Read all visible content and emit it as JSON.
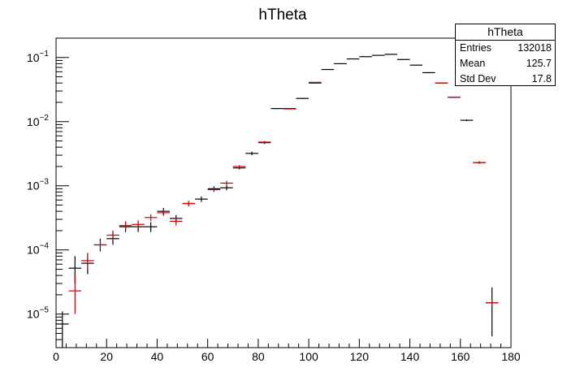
{
  "chart_data": {
    "type": "scatter",
    "title": "hTheta",
    "xlabel": "",
    "ylabel": "",
    "xlim": [
      0,
      180
    ],
    "ylim": [
      3e-06,
      0.2
    ],
    "yscale": "log",
    "grid": false,
    "x_ticks": [
      0,
      20,
      40,
      60,
      80,
      100,
      120,
      140,
      160,
      180
    ],
    "x_tick_labels": [
      "0",
      "20",
      "40",
      "60",
      "80",
      "100",
      "120",
      "140",
      "160",
      "180"
    ],
    "y_ticks": [
      1e-05,
      0.0001,
      0.001,
      0.01,
      0.1
    ],
    "y_tick_bases": [
      "10",
      "10",
      "10",
      "10",
      "10"
    ],
    "y_tick_exponents": [
      "−5",
      "−4",
      "−3",
      "−2",
      "−1"
    ],
    "bin_width": 5,
    "series": [
      {
        "color": "#000000",
        "points": [
          {
            "x": 2.5,
            "y": 7e-06,
            "lo": 3e-06,
            "hi": 1.1e-05
          },
          {
            "x": 7.5,
            "y": 5.2e-05,
            "lo": 3e-05,
            "hi": 8e-05
          },
          {
            "x": 12.5,
            "y": 6.2e-05,
            "lo": 4.2e-05,
            "hi": 8.5e-05
          },
          {
            "x": 17.5,
            "y": 0.00012,
            "lo": 9.5e-05,
            "hi": 0.00015
          },
          {
            "x": 22.5,
            "y": 0.00015,
            "lo": 0.00012,
            "hi": 0.00019
          },
          {
            "x": 27.5,
            "y": 0.00023,
            "lo": 0.00019,
            "hi": 0.00027
          },
          {
            "x": 32.5,
            "y": 0.00023,
            "lo": 0.00019,
            "hi": 0.00027
          },
          {
            "x": 37.5,
            "y": 0.00023,
            "lo": 0.00019,
            "hi": 0.00027
          },
          {
            "x": 42.5,
            "y": 0.0004,
            "lo": 0.00035,
            "hi": 0.00045
          },
          {
            "x": 47.5,
            "y": 0.00031,
            "lo": 0.00027,
            "hi": 0.00035
          },
          {
            "x": 52.5,
            "y": 0.00053,
            "lo": 0.00048,
            "hi": 0.00058
          },
          {
            "x": 57.5,
            "y": 0.00062,
            "lo": 0.00056,
            "hi": 0.00068
          },
          {
            "x": 62.5,
            "y": 0.0009,
            "lo": 0.00082,
            "hi": 0.00098
          },
          {
            "x": 67.5,
            "y": 0.00093,
            "lo": 0.00085,
            "hi": 0.00101
          },
          {
            "x": 72.5,
            "y": 0.0019,
            "lo": 0.0018,
            "hi": 0.002
          },
          {
            "x": 77.5,
            "y": 0.0032,
            "lo": 0.003,
            "hi": 0.0034
          },
          {
            "x": 82.5,
            "y": 0.0047,
            "lo": 0.0045,
            "hi": 0.0049
          },
          {
            "x": 87.5,
            "y": 0.016,
            "lo": 0.0157,
            "hi": 0.0163
          },
          {
            "x": 92.5,
            "y": 0.016,
            "lo": 0.0157,
            "hi": 0.0163
          },
          {
            "x": 97.5,
            "y": 0.023,
            "lo": 0.0226,
            "hi": 0.0234
          },
          {
            "x": 102.5,
            "y": 0.04,
            "lo": 0.0395,
            "hi": 0.0405
          },
          {
            "x": 107.5,
            "y": 0.065,
            "lo": 0.064,
            "hi": 0.066
          },
          {
            "x": 112.5,
            "y": 0.08,
            "lo": 0.079,
            "hi": 0.081
          },
          {
            "x": 117.5,
            "y": 0.095,
            "lo": 0.094,
            "hi": 0.096
          },
          {
            "x": 122.5,
            "y": 0.103,
            "lo": 0.102,
            "hi": 0.104
          },
          {
            "x": 127.5,
            "y": 0.108,
            "lo": 0.107,
            "hi": 0.109
          },
          {
            "x": 132.5,
            "y": 0.112,
            "lo": 0.111,
            "hi": 0.113
          },
          {
            "x": 137.5,
            "y": 0.093,
            "lo": 0.092,
            "hi": 0.094
          },
          {
            "x": 142.5,
            "y": 0.076,
            "lo": 0.075,
            "hi": 0.077
          },
          {
            "x": 147.5,
            "y": 0.058,
            "lo": 0.057,
            "hi": 0.059
          },
          {
            "x": 152.5,
            "y": 0.04,
            "lo": 0.0395,
            "hi": 0.0405
          },
          {
            "x": 157.5,
            "y": 0.024,
            "lo": 0.0236,
            "hi": 0.0244
          },
          {
            "x": 162.5,
            "y": 0.0105,
            "lo": 0.0102,
            "hi": 0.0108
          },
          {
            "x": 167.5,
            "y": 0.0023,
            "lo": 0.0022,
            "hi": 0.0024
          },
          {
            "x": 172.5,
            "y": 1.5e-05,
            "lo": 4.5e-06,
            "hi": 2.6e-05
          }
        ]
      },
      {
        "color": "#cc0000",
        "points": [
          {
            "x": 7.5,
            "y": 2.3e-05,
            "lo": 1e-05,
            "hi": 4.2e-05
          },
          {
            "x": 12.5,
            "y": 6.8e-05,
            "lo": 5e-05,
            "hi": 9e-05
          },
          {
            "x": 17.5,
            "y": 0.00012,
            "lo": 0.0001,
            "hi": 0.00014
          },
          {
            "x": 22.5,
            "y": 0.00017,
            "lo": 0.00014,
            "hi": 0.0002
          },
          {
            "x": 27.5,
            "y": 0.00024,
            "lo": 0.00021,
            "hi": 0.00028
          },
          {
            "x": 32.5,
            "y": 0.00025,
            "lo": 0.00022,
            "hi": 0.00029
          },
          {
            "x": 37.5,
            "y": 0.00032,
            "lo": 0.00028,
            "hi": 0.00036
          },
          {
            "x": 42.5,
            "y": 0.00038,
            "lo": 0.00034,
            "hi": 0.00042
          },
          {
            "x": 47.5,
            "y": 0.00028,
            "lo": 0.00024,
            "hi": 0.00032
          },
          {
            "x": 52.5,
            "y": 0.00053,
            "lo": 0.00048,
            "hi": 0.00058
          },
          {
            "x": 62.5,
            "y": 0.00087,
            "lo": 0.0008,
            "hi": 0.00094
          },
          {
            "x": 67.5,
            "y": 0.0011,
            "lo": 0.001,
            "hi": 0.0012
          },
          {
            "x": 72.5,
            "y": 0.002,
            "lo": 0.0019,
            "hi": 0.0021
          },
          {
            "x": 82.5,
            "y": 0.0048,
            "lo": 0.0046,
            "hi": 0.005
          },
          {
            "x": 92.5,
            "y": 0.0158,
            "lo": 0.0155,
            "hi": 0.0161
          },
          {
            "x": 102.5,
            "y": 0.041,
            "lo": 0.0405,
            "hi": 0.0415
          },
          {
            "x": 152.5,
            "y": 0.04,
            "lo": 0.0395,
            "hi": 0.0405
          },
          {
            "x": 157.5,
            "y": 0.024,
            "lo": 0.0236,
            "hi": 0.0244
          },
          {
            "x": 167.5,
            "y": 0.0023,
            "lo": 0.0022,
            "hi": 0.0024
          },
          {
            "x": 172.5,
            "y": 1.5e-05,
            "lo": 1.3e-05,
            "hi": 1.7e-05
          }
        ]
      }
    ]
  },
  "stats": {
    "title": "hTheta",
    "rows": [
      {
        "label": "Entries",
        "value": "132018"
      },
      {
        "label": "Mean",
        "value": "125.7"
      },
      {
        "label": "Std Dev",
        "value": "17.8"
      }
    ]
  }
}
